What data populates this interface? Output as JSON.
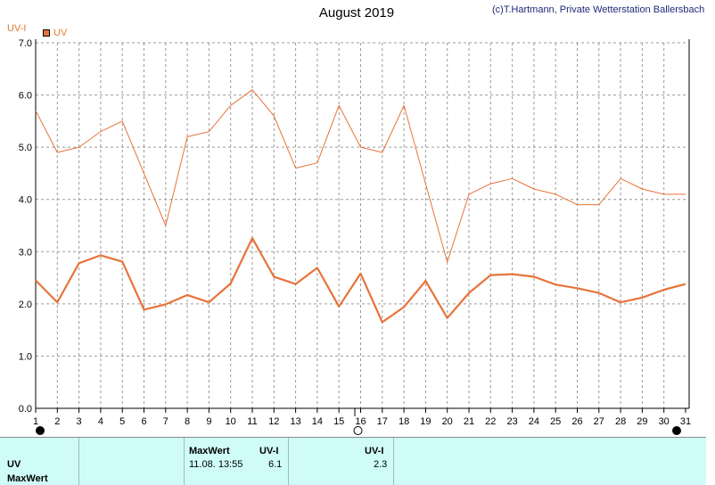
{
  "header": {
    "title": "August 2019",
    "credit": "(c)T.Hartmann, Private Wetterstation Ballersbach",
    "y_axis_unit": "UV-I"
  },
  "legend": {
    "label": "UV",
    "color": "#e8733a"
  },
  "colors": {
    "series": "#e8733a",
    "grid": "#9a9a9a"
  },
  "chart_data": {
    "type": "line",
    "title": "August 2019",
    "ylabel": "UV-I",
    "ylim": [
      0.0,
      7.0
    ],
    "yticks": [
      "0.0",
      "1.0",
      "2.0",
      "3.0",
      "4.0",
      "5.0",
      "6.0",
      "7.0"
    ],
    "categories": [
      "1",
      "2",
      "3",
      "4",
      "5",
      "6",
      "7",
      "8",
      "9",
      "10",
      "11",
      "12",
      "13",
      "14",
      "15",
      "16",
      "17",
      "18",
      "19",
      "20",
      "21",
      "22",
      "23",
      "24",
      "25",
      "26",
      "27",
      "28",
      "29",
      "30",
      "31"
    ],
    "grid": true,
    "legend_position": "top-left",
    "series": [
      {
        "name": "UV",
        "values": [
          5.7,
          4.9,
          5.0,
          5.3,
          5.5,
          4.5,
          3.5,
          5.2,
          5.3,
          5.8,
          6.1,
          5.6,
          4.6,
          4.7,
          5.8,
          5.0,
          4.9,
          5.8,
          4.3,
          2.8,
          4.1,
          4.3,
          4.4,
          4.2,
          4.1,
          3.9,
          3.9,
          4.4,
          4.2,
          4.1,
          4.1
        ]
      },
      {
        "name": "UV",
        "values": [
          2.45,
          2.03,
          2.78,
          2.93,
          2.81,
          1.89,
          1.99,
          2.17,
          2.03,
          2.39,
          3.26,
          2.52,
          2.38,
          2.69,
          1.95,
          2.58,
          1.65,
          1.94,
          2.44,
          1.73,
          2.21,
          2.55,
          2.57,
          2.52,
          2.37,
          2.3,
          2.21,
          2.03,
          2.12,
          2.27,
          2.38
        ]
      }
    ],
    "moon_phases": [
      {
        "day": 1,
        "phase": "new moon"
      },
      {
        "day": 16,
        "phase": "full moon"
      },
      {
        "day": 31,
        "phase": "new moon"
      }
    ]
  },
  "summary_table": {
    "row_labels": [
      "UV",
      "MaxWert"
    ],
    "max_header": "MaxWert",
    "unit_header": "UV-I",
    "max_datetime": "11.08.  13:55",
    "max_value": "6.1",
    "avg_unit_header": "UV-I",
    "avg_value": "2.3"
  }
}
